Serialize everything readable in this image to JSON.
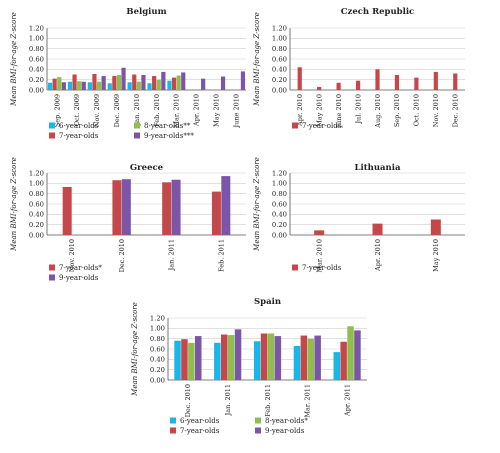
{
  "colors": {
    "six": "#19b6e8",
    "seven": "#c4484a",
    "eight": "#8fbe4f",
    "nine": "#7c55a6"
  },
  "chart_data": [
    {
      "type": "bar",
      "title": "Belgium",
      "ylabel": "Mean BMI-for-age Z-score",
      "ylim": [
        0,
        1.2
      ],
      "yticks": [
        "0.00",
        "0.20",
        "0.40",
        "0.60",
        "0.80",
        "1.00",
        "1.20"
      ],
      "categories": [
        "Sep. 2009",
        "Oct. 2009",
        "Nov. 2009",
        "Dec. 2009",
        "Jan. 2010",
        "Feb. 2010",
        "Mar. 2010",
        "Apr. 2010",
        "May 2010",
        "June 2010"
      ],
      "series": [
        {
          "name": "6-year-olds",
          "color_key": "six",
          "values": [
            0.14,
            0.16,
            0.15,
            0.13,
            0.15,
            0.13,
            0.18,
            null,
            null,
            null
          ]
        },
        {
          "name": "7-year-olds",
          "color_key": "seven",
          "values": [
            0.22,
            0.3,
            0.31,
            0.27,
            0.3,
            0.27,
            0.24,
            null,
            null,
            null
          ]
        },
        {
          "name": "8-year-olds**",
          "color_key": "eight",
          "values": [
            0.25,
            0.17,
            0.16,
            0.29,
            0.16,
            0.2,
            0.28,
            null,
            null,
            null
          ]
        },
        {
          "name": "9-year-olds***",
          "color_key": "nine",
          "values": [
            0.15,
            0.16,
            0.27,
            0.43,
            0.29,
            0.35,
            0.34,
            0.22,
            0.26,
            0.36
          ]
        }
      ],
      "legend": [
        {
          "label": "6-year-olds",
          "color_key": "six"
        },
        {
          "label": "8-year-olds**",
          "color_key": "eight"
        },
        {
          "label": "7-year-olds",
          "color_key": "seven"
        },
        {
          "label": "9-year-olds***",
          "color_key": "nine"
        }
      ]
    },
    {
      "type": "bar",
      "title": "Czech Republic",
      "ylabel": "Mean BMI-for-age Z-score",
      "ylim": [
        0,
        1.2
      ],
      "yticks": [
        "0.00",
        "0.20",
        "0.40",
        "0.60",
        "0.80",
        "1.00",
        "1.20"
      ],
      "categories": [
        "Apr. 2010",
        "May 2010",
        "June 2010",
        "Jul. 2010",
        "Aug. 2010",
        "Sep. 2010",
        "Oct. 2010",
        "Nov. 2010",
        "Dec. 2010"
      ],
      "series": [
        {
          "name": "7-year-olds",
          "color_key": "seven",
          "values": [
            0.44,
            0.06,
            0.14,
            0.18,
            0.4,
            0.29,
            0.24,
            0.35,
            0.32
          ]
        }
      ],
      "legend": [
        {
          "label": "7-year-olds",
          "color_key": "seven"
        }
      ]
    },
    {
      "type": "bar",
      "title": "Greece",
      "ylabel": "Mean BMI-for-age Z-score",
      "ylim": [
        0,
        1.2
      ],
      "yticks": [
        "0.00",
        "0.20",
        "0.40",
        "0.60",
        "0.80",
        "1.00",
        "1.20"
      ],
      "categories": [
        "Nov. 2010",
        "Dec. 2010",
        "Jan. 2011",
        "Feb. 2011"
      ],
      "series": [
        {
          "name": "7-year-olds*",
          "color_key": "seven",
          "values": [
            0.93,
            1.06,
            1.02,
            0.84
          ]
        },
        {
          "name": "9-year-olds",
          "color_key": "nine",
          "values": [
            null,
            1.08,
            1.07,
            1.14
          ]
        }
      ],
      "legend": [
        {
          "label": "7-year-olds*",
          "color_key": "seven"
        },
        {
          "label": "9-year-olds",
          "color_key": "nine"
        }
      ]
    },
    {
      "type": "bar",
      "title": "Lithuania",
      "ylabel": "Mean BMI-for-age Z-score",
      "ylim": [
        0,
        1.2
      ],
      "yticks": [
        "0.00",
        "0.20",
        "0.40",
        "0.60",
        "0.80",
        "1.00",
        "1.20"
      ],
      "categories": [
        "Mar. 2010",
        "Apr. 2010",
        "May 2010"
      ],
      "series": [
        {
          "name": "7-year-olds",
          "color_key": "seven",
          "values": [
            0.09,
            0.22,
            0.3
          ]
        }
      ],
      "legend": [
        {
          "label": "7-year-olds",
          "color_key": "seven"
        }
      ]
    },
    {
      "type": "bar",
      "title": "Spain",
      "ylabel": "Mean BMI-for-age Z-score",
      "ylim": [
        0,
        1.2
      ],
      "yticks": [
        "0.00",
        "0.20",
        "0.40",
        "0.60",
        "0.80",
        "1.00",
        "1.20"
      ],
      "categories": [
        "Dec. 2010",
        "Jan. 2011",
        "Feb. 2011",
        "Mar. 2011",
        "Apr. 2011"
      ],
      "series": [
        {
          "name": "6-year-olds",
          "color_key": "six",
          "values": [
            0.76,
            0.72,
            0.75,
            0.66,
            0.54
          ]
        },
        {
          "name": "7-year-olds",
          "color_key": "seven",
          "values": [
            0.79,
            0.88,
            0.9,
            0.86,
            0.74
          ]
        },
        {
          "name": "8-year-olds*",
          "color_key": "eight",
          "values": [
            0.72,
            0.87,
            0.9,
            0.8,
            1.04
          ]
        },
        {
          "name": "9-year-olds",
          "color_key": "nine",
          "values": [
            0.85,
            0.98,
            0.85,
            0.86,
            0.96
          ]
        }
      ],
      "legend": [
        {
          "label": "6-year-olds",
          "color_key": "six"
        },
        {
          "label": "8-year-olds*",
          "color_key": "eight"
        },
        {
          "label": "7-year-olds",
          "color_key": "seven"
        },
        {
          "label": "9-year-olds",
          "color_key": "nine"
        }
      ]
    }
  ]
}
